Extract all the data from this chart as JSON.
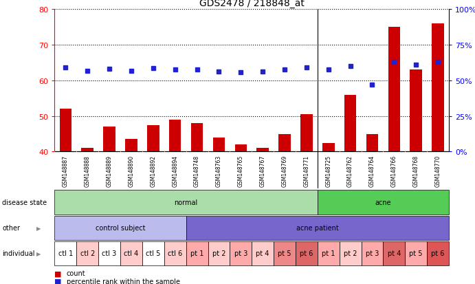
{
  "title": "GDS2478 / 218848_at",
  "samples": [
    "GSM148887",
    "GSM148888",
    "GSM148889",
    "GSM148890",
    "GSM148892",
    "GSM148894",
    "GSM148748",
    "GSM148763",
    "GSM148765",
    "GSM148767",
    "GSM148769",
    "GSM148771",
    "GSM148725",
    "GSM148762",
    "GSM148764",
    "GSM148766",
    "GSM148768",
    "GSM148770"
  ],
  "counts": [
    52,
    41,
    47,
    43.5,
    47.5,
    49,
    48,
    44,
    42,
    41,
    45,
    50.5,
    42.5,
    56,
    45,
    75,
    63,
    76
  ],
  "percentile_ranks": [
    59,
    57,
    58,
    57,
    58.5,
    57.5,
    57.5,
    56.5,
    56,
    56.5,
    57.5,
    59,
    57.5,
    60,
    47,
    63,
    61,
    63
  ],
  "bar_color": "#cc0000",
  "dot_color": "#2222cc",
  "ylim_left": [
    40,
    80
  ],
  "ylim_right": [
    0,
    100
  ],
  "yticks_left": [
    40,
    50,
    60,
    70,
    80
  ],
  "yticks_right": [
    0,
    25,
    50,
    75,
    100
  ],
  "ytick_labels_right": [
    "0%",
    "25%",
    "50%",
    "75%",
    "100%"
  ],
  "disease_state_groups": [
    {
      "label": "normal",
      "start": 0,
      "end": 12,
      "color": "#aaddaa"
    },
    {
      "label": "acne",
      "start": 12,
      "end": 18,
      "color": "#55cc55"
    }
  ],
  "other_groups": [
    {
      "label": "control subject",
      "start": 0,
      "end": 6,
      "color": "#bbbbee"
    },
    {
      "label": "acne patient",
      "start": 6,
      "end": 18,
      "color": "#7766cc"
    }
  ],
  "individual_labels": [
    "ctl 1",
    "ctl 2",
    "ctl 3",
    "ctl 4",
    "ctl 5",
    "ctl 6",
    "pt 1",
    "pt 2",
    "pt 3",
    "pt 4",
    "pt 5",
    "pt 6",
    "pt 1",
    "pt 2",
    "pt 3",
    "pt 4",
    "pt 5",
    "pt 6"
  ],
  "individual_colors": [
    "#ffffff",
    "#ffcccc",
    "#ffffff",
    "#ffcccc",
    "#ffffff",
    "#ffcccc",
    "#ffaaaa",
    "#ffcccc",
    "#ffaaaa",
    "#ffcccc",
    "#ee8888",
    "#dd6666",
    "#ffaaaa",
    "#ffcccc",
    "#ffaaaa",
    "#dd6666",
    "#ffaaaa",
    "#dd5555"
  ],
  "div_after_idx": 11,
  "label_bg_color": "#cccccc",
  "normal_green": "#aaddaa",
  "acne_green": "#55cc55",
  "control_purple": "#bbbbee",
  "acne_purple": "#7766cc"
}
